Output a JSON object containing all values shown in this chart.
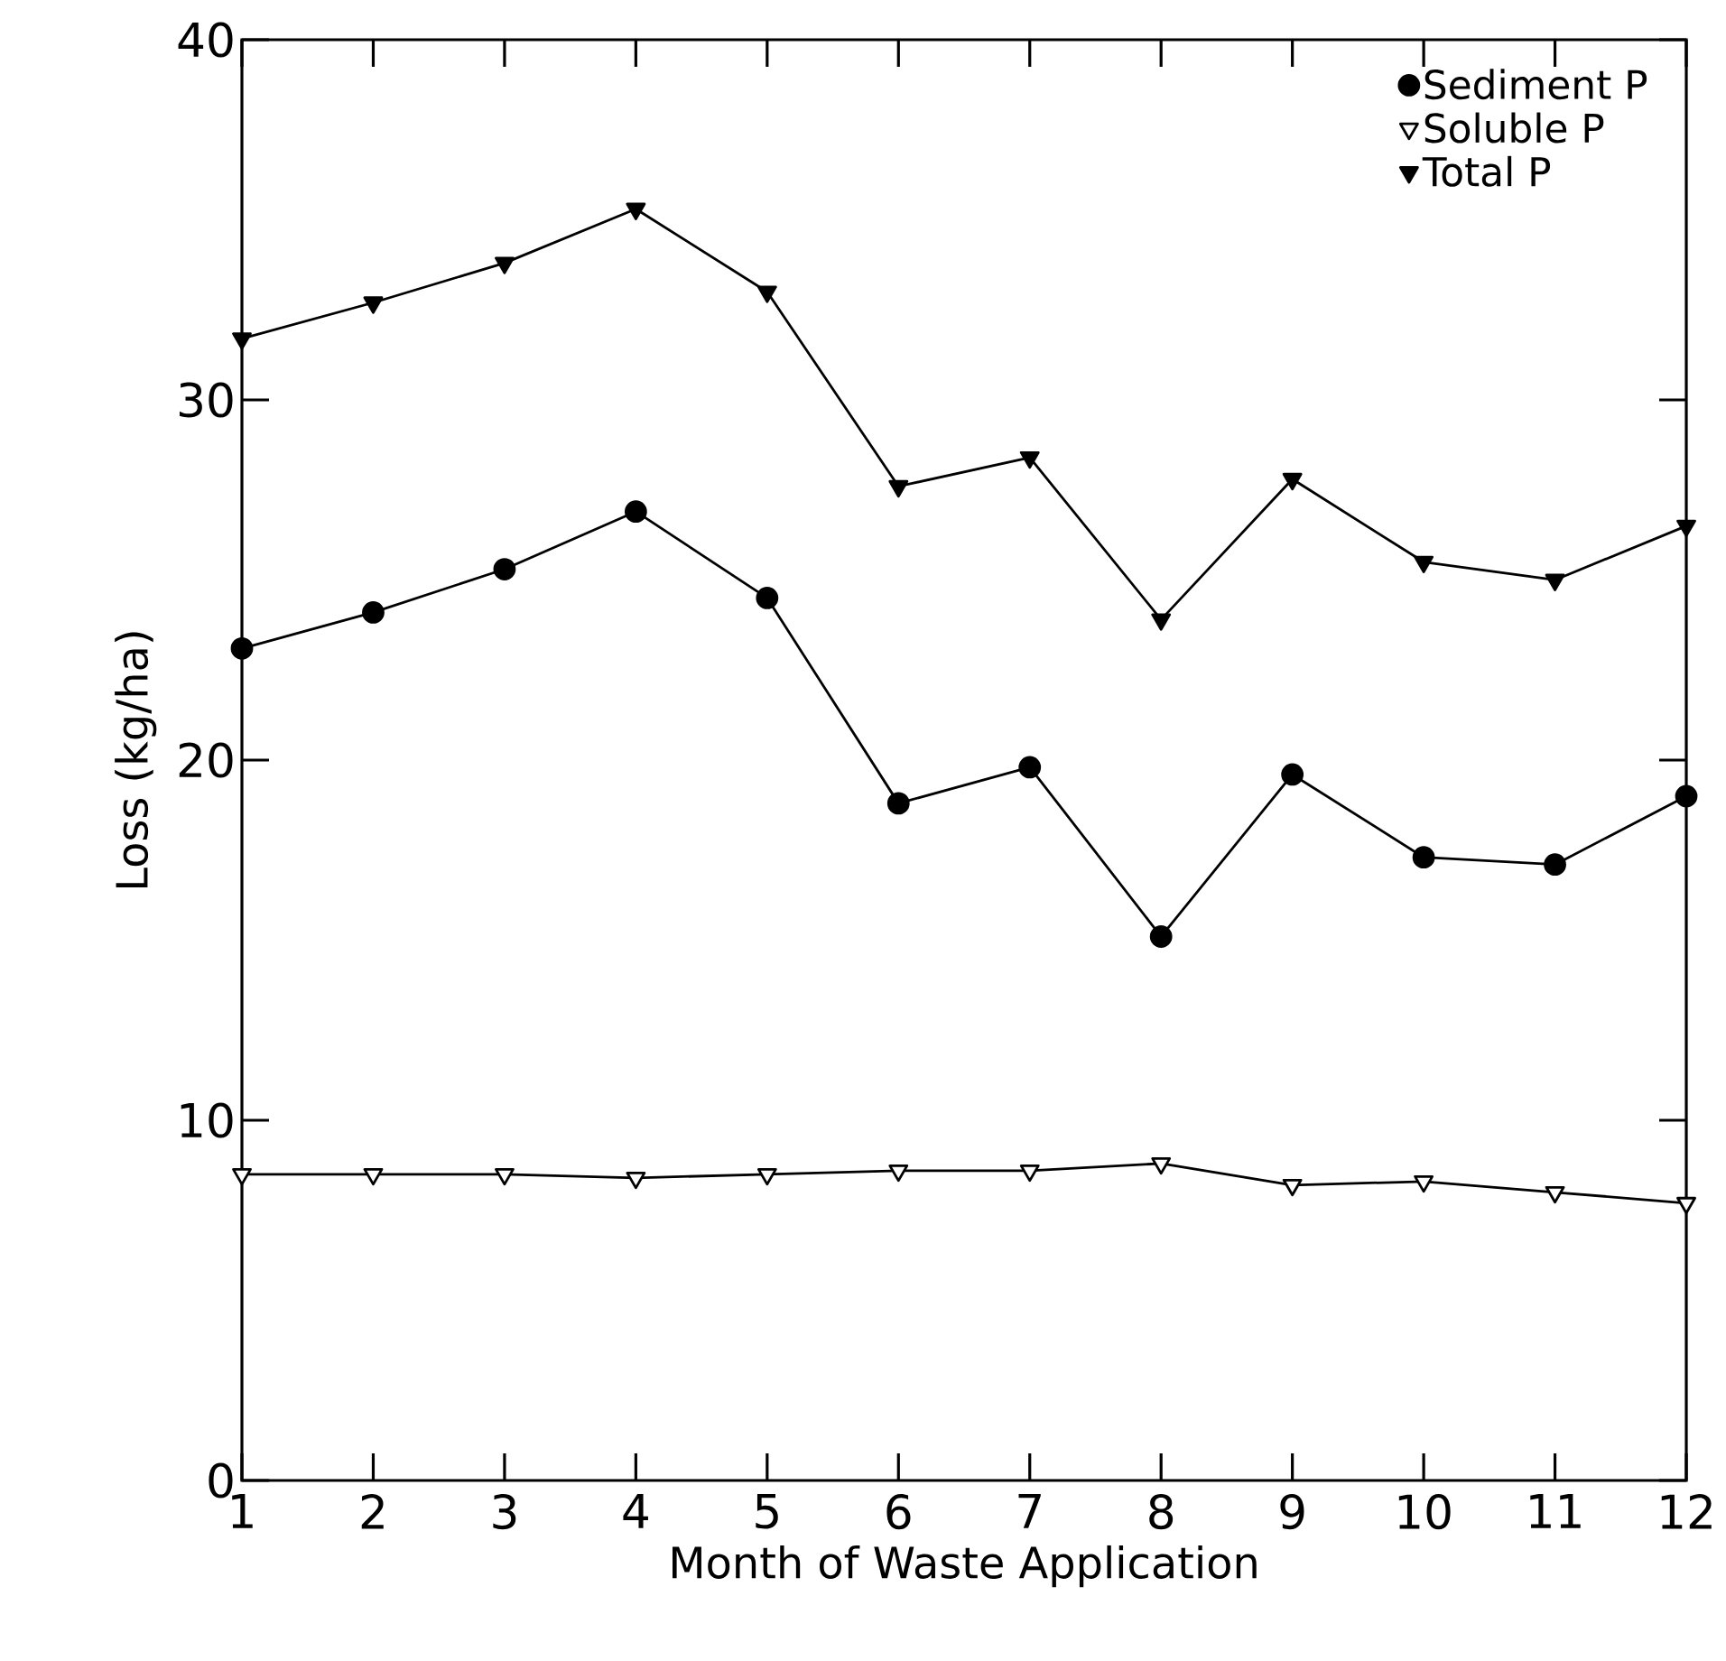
{
  "chart_data": {
    "type": "line",
    "xlabel": "Month of Waste Application",
    "ylabel": "Loss (kg/ha)",
    "x": [
      1,
      2,
      3,
      4,
      5,
      6,
      7,
      8,
      9,
      10,
      11,
      12
    ],
    "series": [
      {
        "name": "Sediment P",
        "color": "#000000",
        "marker": "circle",
        "values": [
          23.1,
          24.1,
          25.3,
          26.9,
          24.5,
          18.8,
          19.8,
          15.1,
          19.6,
          17.3,
          17.1,
          19.0
        ]
      },
      {
        "name": "Soluble P",
        "color": "#000000",
        "marker": "triangle",
        "values": [
          8.5,
          8.5,
          8.5,
          8.4,
          8.5,
          8.6,
          8.6,
          8.8,
          8.2,
          8.3,
          8.0,
          7.7
        ]
      },
      {
        "name": "Total P",
        "color": "#000000",
        "marker": "triangle",
        "values": [
          31.7,
          32.7,
          33.8,
          35.3,
          33.0,
          27.6,
          28.4,
          23.9,
          27.8,
          25.5,
          25.0,
          26.5
        ]
      }
    ],
    "xlim": [
      1,
      12
    ],
    "ylim": [
      0,
      40
    ],
    "xticks": [
      1,
      2,
      3,
      4,
      5,
      6,
      7,
      8,
      9,
      10,
      11,
      12
    ],
    "yticks": [
      0,
      10,
      20,
      30,
      40
    ],
    "legend": "top right",
    "grid": false,
    "line_style": "solid"
  }
}
